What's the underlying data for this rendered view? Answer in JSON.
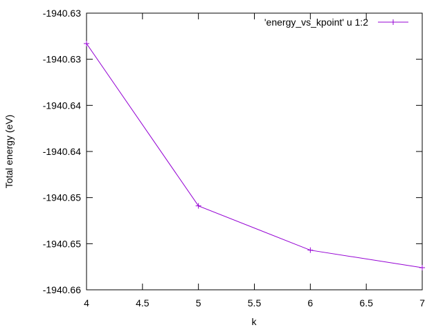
{
  "chart_data": {
    "type": "line",
    "title": "",
    "xlabel": "k",
    "ylabel": "Total energy (eV)",
    "xlim": [
      4,
      7
    ],
    "ylim": [
      -1940.66,
      -1940.63
    ],
    "x_ticks": [
      {
        "value": 4,
        "label": "4"
      },
      {
        "value": 4.5,
        "label": "4.5"
      },
      {
        "value": 5,
        "label": "5"
      },
      {
        "value": 5.5,
        "label": "5.5"
      },
      {
        "value": 6,
        "label": "6"
      },
      {
        "value": 6.5,
        "label": "6.5"
      },
      {
        "value": 7,
        "label": "7"
      }
    ],
    "y_ticks": [
      {
        "value": -1940.63,
        "label": "-1940.63"
      },
      {
        "value": -1940.635,
        "label": "-1940.63"
      },
      {
        "value": -1940.64,
        "label": "-1940.64"
      },
      {
        "value": -1940.645,
        "label": "-1940.64"
      },
      {
        "value": -1940.65,
        "label": "-1940.65"
      },
      {
        "value": -1940.655,
        "label": "-1940.65"
      },
      {
        "value": -1940.66,
        "label": "-1940.66"
      }
    ],
    "grid": false,
    "legend_position": "top-right",
    "series": [
      {
        "name": "'energy_vs_kpoint' u 1:2",
        "color": "#9400d3",
        "marker": "plus",
        "x": [
          4,
          5,
          6,
          7
        ],
        "y": [
          -1940.6333,
          -1940.6509,
          -1940.6557,
          -1940.6576
        ]
      }
    ]
  }
}
